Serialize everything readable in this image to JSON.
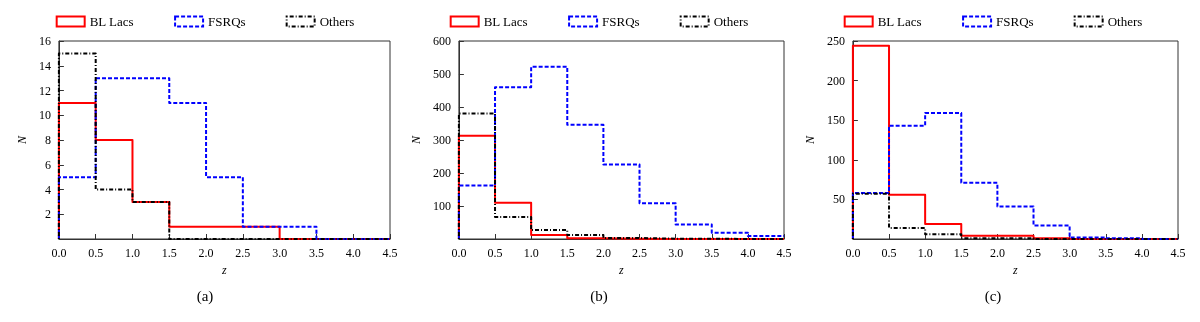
{
  "chart_data": [
    {
      "type": "histogram",
      "annotations": [
        "(a)"
      ],
      "xlabel": "z",
      "ylabel": "N",
      "legend": "top",
      "grid": false,
      "bins": [
        0,
        0.5,
        1,
        1.5,
        2,
        2.5,
        3,
        3.5,
        4,
        4.5
      ],
      "series": [
        {
          "name": "BL Lacs",
          "color": "#ff0000",
          "line_style": "solid",
          "values": [
            11,
            8,
            3,
            1,
            1,
            1,
            0,
            0,
            0
          ]
        },
        {
          "name": "FSRQs",
          "color": "#0000ff",
          "line_style": "dashed",
          "values": [
            5,
            13,
            13,
            11,
            5,
            1,
            1,
            0,
            0
          ]
        },
        {
          "name": "Others",
          "color": "#000000",
          "line_style": "dotted",
          "values": [
            15,
            4,
            3,
            0,
            0,
            0,
            0,
            0,
            0
          ]
        }
      ],
      "xlim": [
        0,
        4.5
      ],
      "xticks": [
        {
          "value": 0,
          "label": "0.0"
        },
        {
          "value": 0.5,
          "label": "0.5"
        },
        {
          "value": 1,
          "label": "1.0"
        },
        {
          "value": 1.5,
          "label": "1.5"
        },
        {
          "value": 2,
          "label": "2.0"
        },
        {
          "value": 2.5,
          "label": "2.5"
        },
        {
          "value": 3,
          "label": "3.0"
        },
        {
          "value": 3.5,
          "label": "3.5"
        },
        {
          "value": 4,
          "label": "4.0"
        },
        {
          "value": 4.5,
          "label": "4.5"
        }
      ],
      "ylim": [
        0,
        16
      ],
      "yticks": [
        2,
        4,
        6,
        8,
        10,
        12,
        14,
        16
      ]
    },
    {
      "type": "histogram",
      "annotations": [
        "(b)"
      ],
      "xlabel": "z",
      "ylabel": "N",
      "legend": "top",
      "grid": false,
      "bins": [
        0,
        0.5,
        1,
        1.5,
        2,
        2.5,
        3,
        3.5,
        4,
        4.5
      ],
      "series": [
        {
          "name": "BL Lacs",
          "color": "#ff0000",
          "line_style": "solid",
          "values": [
            313,
            110,
            12,
            2,
            1,
            0,
            0,
            0,
            0
          ]
        },
        {
          "name": "FSRQs",
          "color": "#0000ff",
          "line_style": "dashed",
          "values": [
            162,
            460,
            522,
            346,
            226,
            108,
            44,
            19,
            9
          ]
        },
        {
          "name": "Others",
          "color": "#000000",
          "line_style": "dotted",
          "values": [
            380,
            67,
            27,
            12,
            3,
            1,
            1,
            0,
            0
          ]
        }
      ],
      "xlim": [
        0,
        4.5
      ],
      "xticks": [
        {
          "value": 0,
          "label": "0.0"
        },
        {
          "value": 0.5,
          "label": "0.5"
        },
        {
          "value": 1,
          "label": "1.0"
        },
        {
          "value": 1.5,
          "label": "1.5"
        },
        {
          "value": 2,
          "label": "2.0"
        },
        {
          "value": 2.5,
          "label": "2.5"
        },
        {
          "value": 3,
          "label": "3.0"
        },
        {
          "value": 3.5,
          "label": "3.5"
        },
        {
          "value": 4,
          "label": "4.0"
        },
        {
          "value": 4.5,
          "label": "4.5"
        }
      ],
      "ylim": [
        0,
        600
      ],
      "yticks": [
        100,
        200,
        300,
        400,
        500,
        600
      ]
    },
    {
      "type": "histogram",
      "annotations": [
        "(c)"
      ],
      "xlabel": "z",
      "ylabel": "N",
      "legend": "top",
      "grid": false,
      "bins": [
        0,
        0.5,
        1,
        1.5,
        2,
        2.5,
        3,
        3.5,
        4,
        4.5
      ],
      "series": [
        {
          "name": "BL Lacs",
          "color": "#ff0000",
          "line_style": "solid",
          "values": [
            244,
            56,
            19,
            4,
            4,
            1,
            0,
            0,
            0
          ]
        },
        {
          "name": "FSRQs",
          "color": "#0000ff",
          "line_style": "dashed",
          "values": [
            58,
            143,
            159,
            71,
            41,
            17,
            2,
            1,
            0
          ]
        },
        {
          "name": "Others",
          "color": "#000000",
          "line_style": "dotted",
          "values": [
            57,
            14,
            6,
            1,
            1,
            0,
            0,
            0,
            0
          ]
        }
      ],
      "xlim": [
        0,
        4.5
      ],
      "xticks": [
        {
          "value": 0,
          "label": "0.0"
        },
        {
          "value": 0.5,
          "label": "0.5"
        },
        {
          "value": 1,
          "label": "1.0"
        },
        {
          "value": 1.5,
          "label": "1.5"
        },
        {
          "value": 2,
          "label": "2.0"
        },
        {
          "value": 2.5,
          "label": "2.5"
        },
        {
          "value": 3,
          "label": "3.0"
        },
        {
          "value": 3.5,
          "label": "3.5"
        },
        {
          "value": 4,
          "label": "4.0"
        },
        {
          "value": 4.5,
          "label": "4.5"
        }
      ],
      "ylim": [
        0,
        250
      ],
      "yticks": [
        50,
        100,
        150,
        200,
        250
      ]
    }
  ]
}
